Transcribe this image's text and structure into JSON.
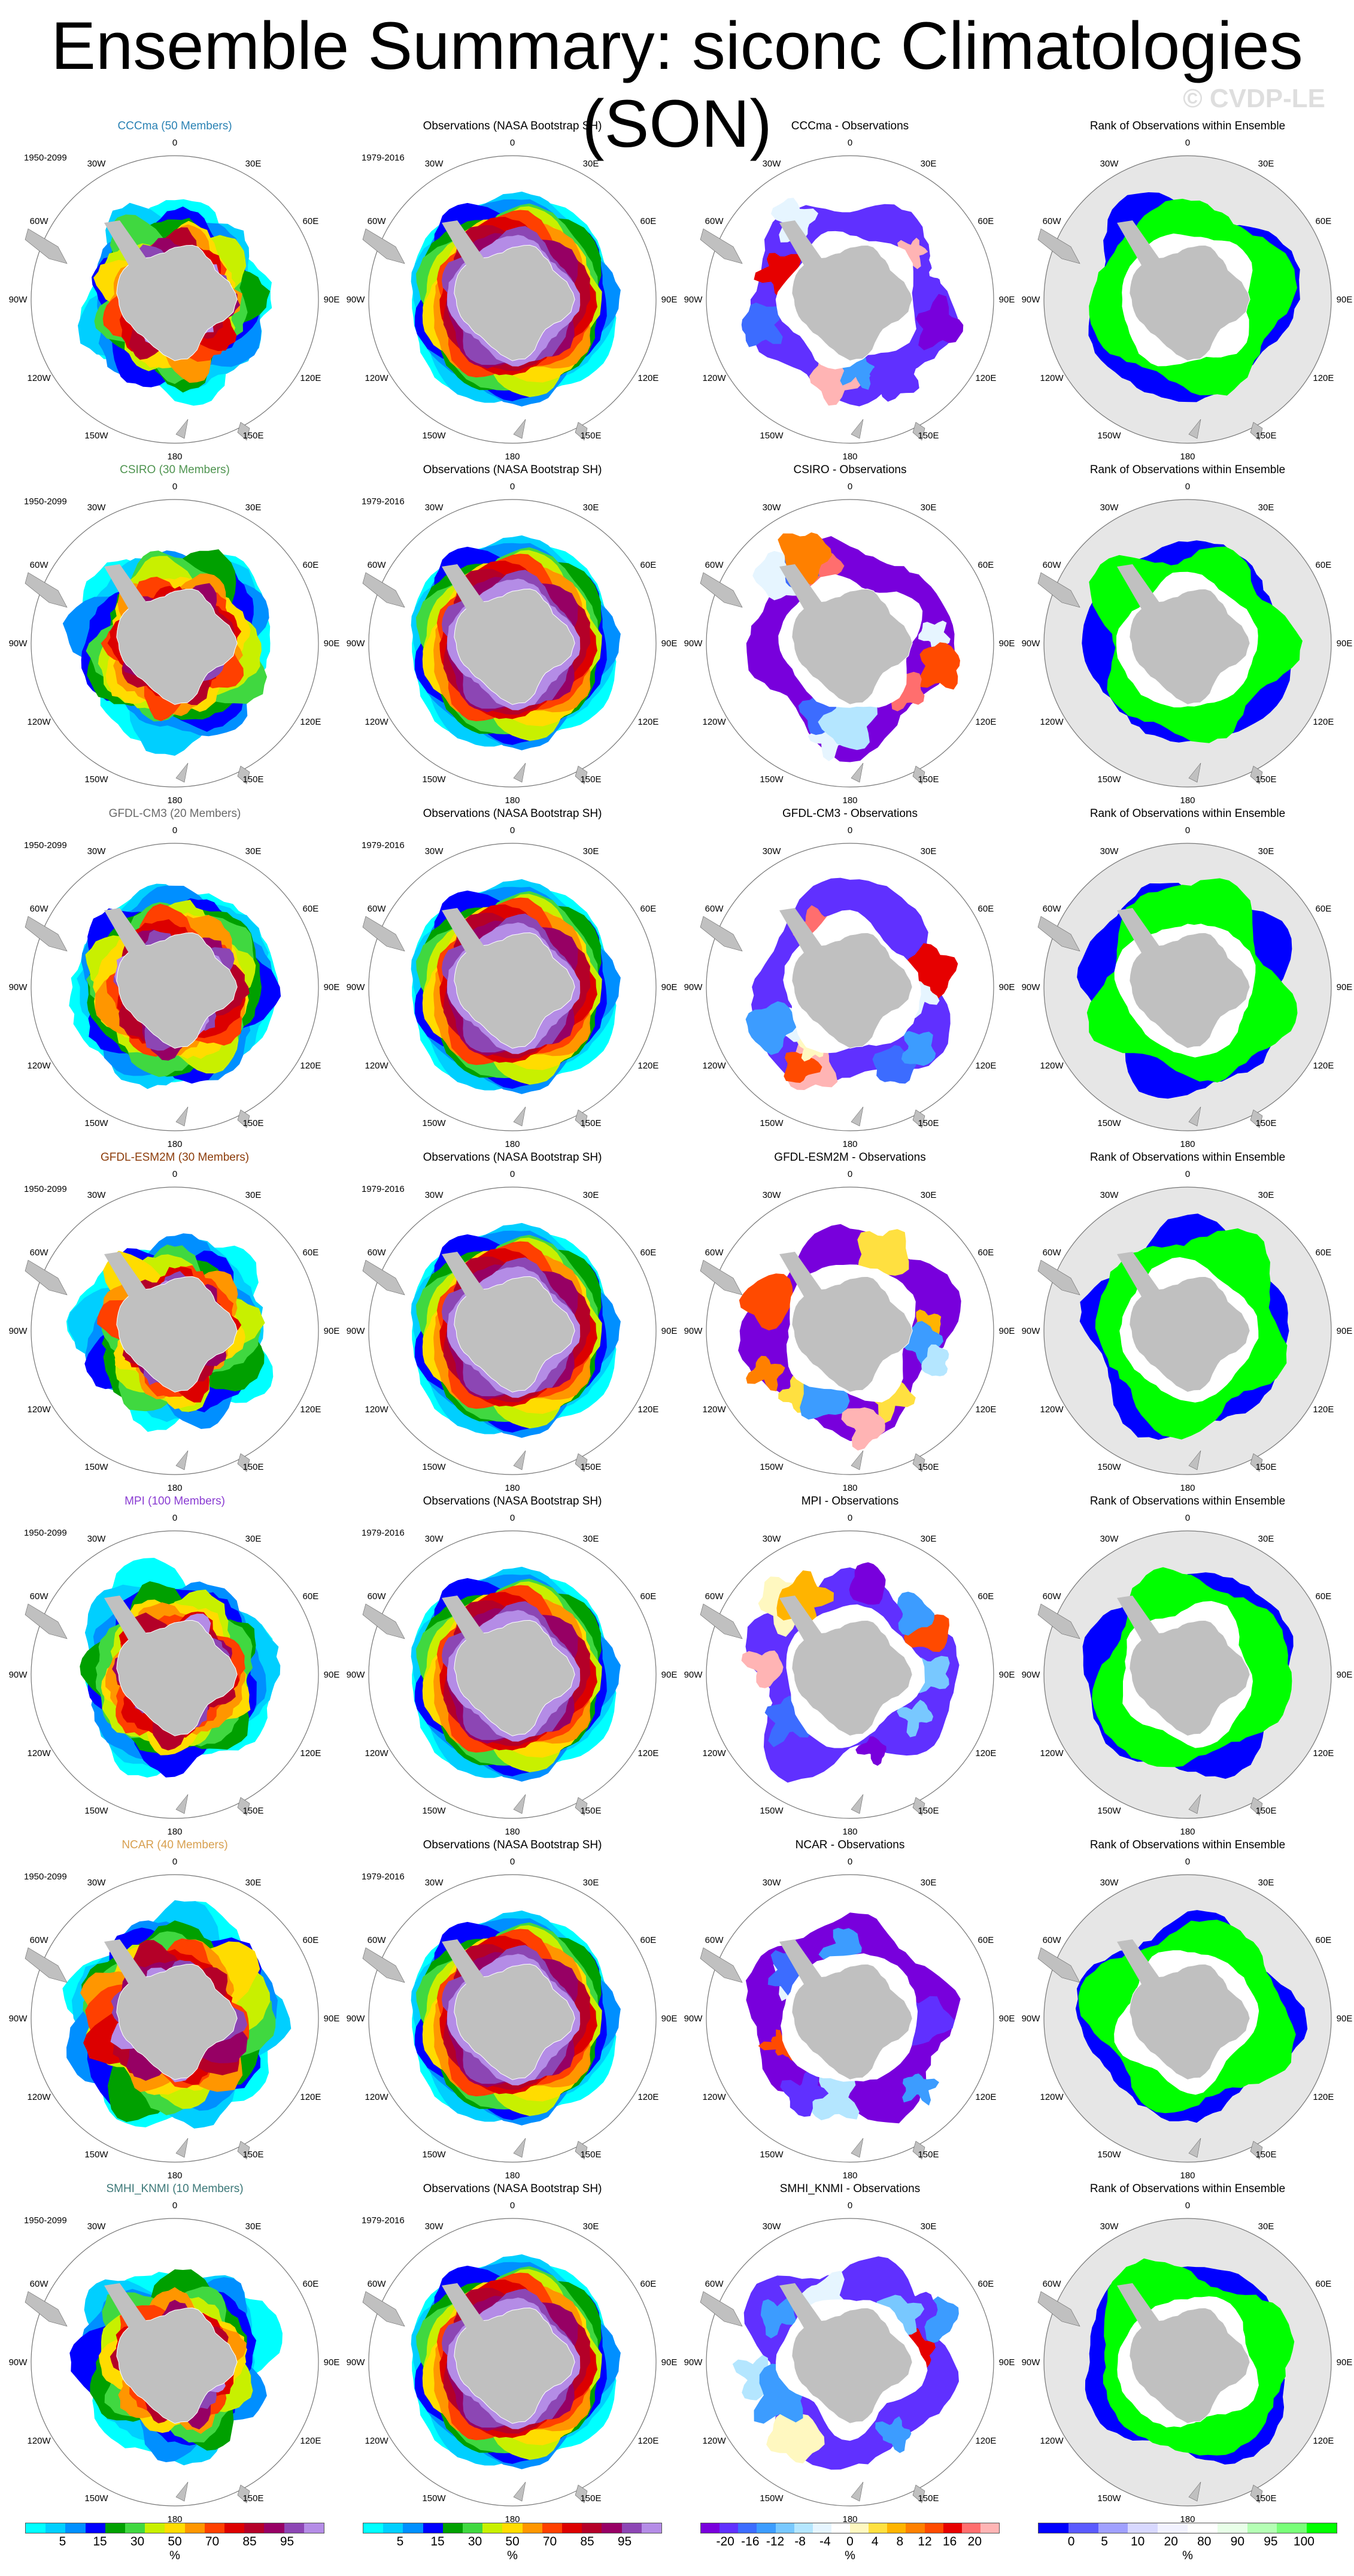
{
  "title": "Ensemble Summary: siconc Climatologies (SON)",
  "watermark": "© CVDP-LE",
  "lon_labels": [
    "0",
    "30E",
    "60E",
    "90E",
    "120E",
    "150E",
    "180",
    "150W",
    "120W",
    "90W",
    "60W",
    "30W"
  ],
  "colors": {
    "land": "#c0c0c0",
    "rank_bg": "#e6e6e6",
    "conc": [
      "#00ffff",
      "#00cfff",
      "#008fff",
      "#0000ff",
      "#00a000",
      "#40d840",
      "#c8f000",
      "#ffdc00",
      "#ff9600",
      "#ff4000",
      "#dc0000",
      "#b40028",
      "#960064",
      "#8c46b4",
      "#b48ce6"
    ],
    "diff": [
      "#7800dc",
      "#6030ff",
      "#3c6cff",
      "#3c9cff",
      "#78c8ff",
      "#b4e6ff",
      "#e6f5ff",
      "#ffffff",
      "#fff8c0",
      "#ffe040",
      "#ffb400",
      "#ff8000",
      "#ff4a00",
      "#e60000",
      "#ff6e6e",
      "#ffb4b4"
    ],
    "rank": [
      "#0000ff",
      "#5a5aff",
      "#a0a0ff",
      "#d8d8ff",
      "#f2f2ff",
      "#ffffff",
      "#e8ffe8",
      "#b4ffb4",
      "#78ff78",
      "#00ff00"
    ]
  },
  "rows": [
    {
      "model_title": "CCCma (50 Members)",
      "model_color": "#2a82b4",
      "years": "1950-2099",
      "obs_title": "Observations (NASA Bootstrap SH)",
      "obs_years": "1979-2016",
      "diff_title": "CCCma - Observations",
      "rank_title": "Rank of Observations within Ensemble"
    },
    {
      "model_title": "CSIRO (30 Members)",
      "model_color": "#4f9450",
      "years": "1950-2099",
      "obs_title": "Observations (NASA Bootstrap SH)",
      "obs_years": "1979-2016",
      "diff_title": "CSIRO - Observations",
      "rank_title": "Rank of Observations within Ensemble"
    },
    {
      "model_title": "GFDL-CM3 (20 Members)",
      "model_color": "#6a6a6a",
      "years": "1950-2099",
      "obs_title": "Observations (NASA Bootstrap SH)",
      "obs_years": "1979-2016",
      "diff_title": "GFDL-CM3 - Observations",
      "rank_title": "Rank of Observations within Ensemble"
    },
    {
      "model_title": "GFDL-ESM2M (30 Members)",
      "model_color": "#8c3c0a",
      "years": "1950-2099",
      "obs_title": "Observations (NASA Bootstrap SH)",
      "obs_years": "1979-2016",
      "diff_title": "GFDL-ESM2M - Observations",
      "rank_title": "Rank of Observations within Ensemble"
    },
    {
      "model_title": "MPI (100 Members)",
      "model_color": "#8a3cd2",
      "years": "1950-2099",
      "obs_title": "Observations (NASA Bootstrap SH)",
      "obs_years": "1979-2016",
      "diff_title": "MPI - Observations",
      "rank_title": "Rank of Observations within Ensemble"
    },
    {
      "model_title": "NCAR (40 Members)",
      "model_color": "#d8a050",
      "years": "1950-2099",
      "obs_title": "Observations (NASA Bootstrap SH)",
      "obs_years": "1979-2016",
      "diff_title": "NCAR - Observations",
      "rank_title": "Rank of Observations within Ensemble"
    },
    {
      "model_title": "SMHI_KNMI (10 Members)",
      "model_color": "#3c7878",
      "years": "1950-2099",
      "obs_title": "Observations (NASA Bootstrap SH)",
      "obs_years": "1979-2016",
      "diff_title": "SMHI_KNMI - Observations",
      "rank_title": "Rank of Observations within Ensemble"
    }
  ],
  "colorbars": [
    {
      "ticks": [
        "5",
        "15",
        "30",
        "50",
        "70",
        "85",
        "95"
      ],
      "unit": "%"
    },
    {
      "ticks": [
        "5",
        "15",
        "30",
        "50",
        "70",
        "85",
        "95"
      ],
      "unit": "%"
    },
    {
      "ticks": [
        "-20",
        "-16",
        "-12",
        "-8",
        "-4",
        "0",
        "4",
        "8",
        "12",
        "16",
        "20"
      ],
      "unit": "%"
    },
    {
      "ticks": [
        "0",
        "5",
        "10",
        "20",
        "80",
        "90",
        "95",
        "100"
      ],
      "unit": "%"
    }
  ]
}
